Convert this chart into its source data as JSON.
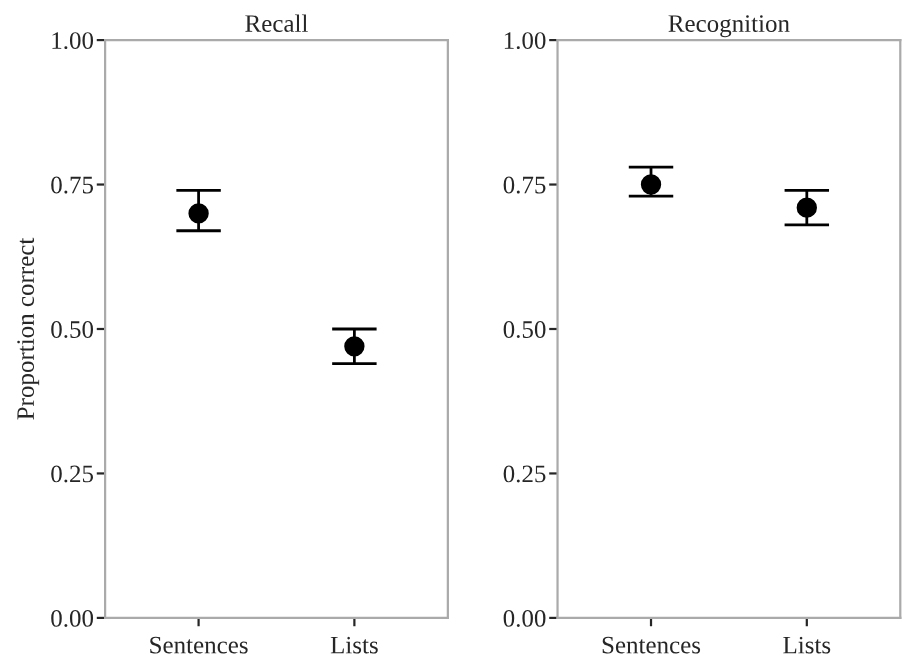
{
  "chart_data": [
    {
      "type": "scatter",
      "title": "Recall",
      "ylabel": "Proportion correct",
      "categories": [
        "Sentences",
        "Lists"
      ],
      "series": [
        {
          "color": "#000000",
          "values": [
            0.7,
            0.47
          ],
          "errors": [
            [
              0.67,
              0.74
            ],
            [
              0.44,
              0.5
            ]
          ]
        }
      ],
      "ylim": [
        0,
        1
      ],
      "yticks": [
        {
          "value": 0,
          "label": "0.00"
        },
        {
          "value": 0.25,
          "label": "0.25"
        },
        {
          "value": 0.5,
          "label": "0.50"
        },
        {
          "value": 0.75,
          "label": "0.75"
        },
        {
          "value": 1,
          "label": "1.00"
        }
      ],
      "grid": false,
      "marker": "circle",
      "legend": false
    },
    {
      "type": "scatter",
      "title": "Recognition",
      "categories": [
        "Sentences",
        "Lists"
      ],
      "series": [
        {
          "color": "#000000",
          "values": [
            0.75,
            0.71
          ],
          "errors": [
            [
              0.73,
              0.78
            ],
            [
              0.68,
              0.74
            ]
          ]
        }
      ],
      "ylim": [
        0,
        1
      ],
      "yticks": [
        {
          "value": 0,
          "label": "0.00"
        },
        {
          "value": 0.25,
          "label": "0.25"
        },
        {
          "value": 0.5,
          "label": "0.50"
        },
        {
          "value": 0.75,
          "label": "0.75"
        },
        {
          "value": 1,
          "label": "1.00"
        }
      ],
      "grid": false,
      "marker": "circle",
      "legend": false
    }
  ]
}
